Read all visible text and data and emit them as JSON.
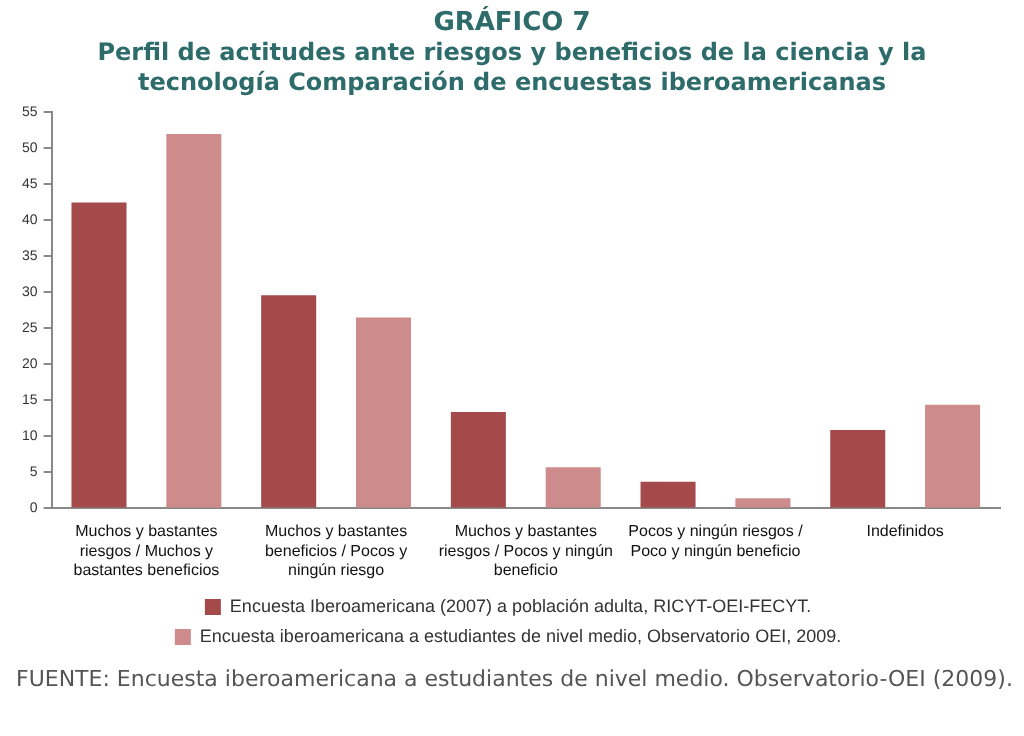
{
  "chart_data": {
    "type": "bar",
    "title": "GRÁFICO 7",
    "subtitle": "Perfil de actitudes ante riesgos y beneficios de la ciencia y la tecnología Comparación de encuestas iberoamericanas",
    "categories": [
      "Muchos y bastantes riesgos / Muchos y bastantes beneficios",
      "Muchos y bastantes beneficios / Pocos y ningún riesgo",
      "Muchos y bastantes riesgos / Pocos y ningún beneficio",
      "Pocos y ningún riesgos / Poco y ningún beneficio",
      "Indefinidos"
    ],
    "series": [
      {
        "name": "Encuesta Iberoamericana (2007) a población adulta, RICYT-OEI-FECYT.",
        "color": "#a44a4a",
        "values": [
          42.5,
          29.6,
          13.4,
          3.7,
          10.9
        ]
      },
      {
        "name": "Encuesta iberoamericana a estudiantes de nivel medio, Observatorio OEI, 2009.",
        "color": "#cd8b8b",
        "values": [
          52,
          26.5,
          5.7,
          1.4,
          14.4
        ]
      }
    ],
    "ylim": [
      0,
      55
    ],
    "yticks": [
      0,
      5,
      10,
      15,
      20,
      25,
      30,
      35,
      40,
      45,
      50,
      55
    ],
    "grid": false,
    "legend": "bottom",
    "annotations": [
      "FUENTE: Encuesta iberoamericana a estudiantes de nivel medio. Observatorio-OEI (2009)."
    ]
  }
}
